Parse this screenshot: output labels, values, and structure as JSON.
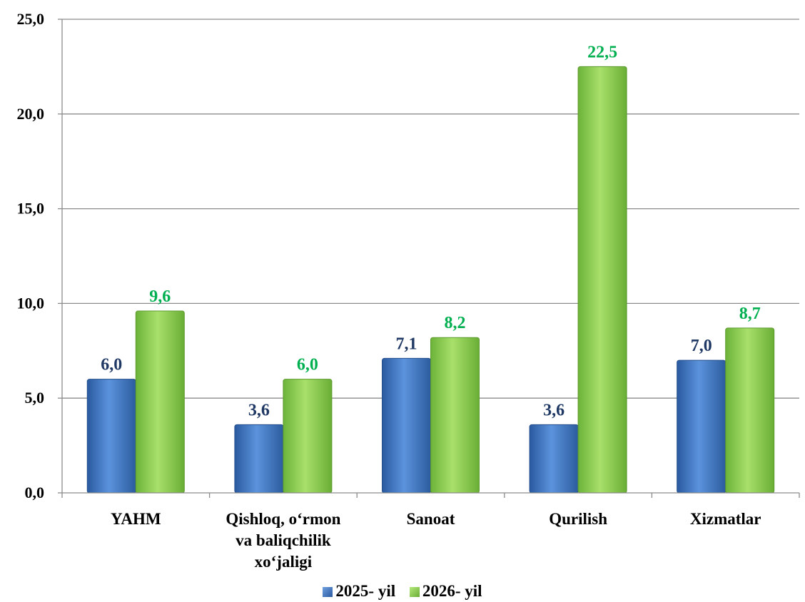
{
  "chart_data": {
    "type": "bar",
    "categories": [
      [
        "YAHM"
      ],
      [
        "Qishloq, o‘rmon",
        "va baliqchilik",
        "xo‘jaligi"
      ],
      [
        "Sanoat"
      ],
      [
        "Qurilish"
      ],
      [
        "Xizmatlar"
      ]
    ],
    "series": [
      {
        "name": "2025- yil",
        "values": [
          6.0,
          3.6,
          7.1,
          3.6,
          7.0
        ],
        "labels": [
          "6,0",
          "3,6",
          "7,1",
          "3,6",
          "7,0"
        ],
        "color": "#3a6fbe",
        "label_color": "#1f3864"
      },
      {
        "name": "2026- yil",
        "values": [
          9.6,
          6.0,
          8.2,
          22.5,
          8.7
        ],
        "labels": [
          "9,6",
          "6,0",
          "8,2",
          "22,5",
          "8,7"
        ],
        "color": "#8fd14f",
        "label_color": "#00b050"
      }
    ],
    "ylim": [
      0,
      25
    ],
    "yticks": [
      "0,0",
      "5,0",
      "10,0",
      "15,0",
      "20,0",
      "25,0"
    ],
    "grid": true,
    "legend": "bottom"
  }
}
